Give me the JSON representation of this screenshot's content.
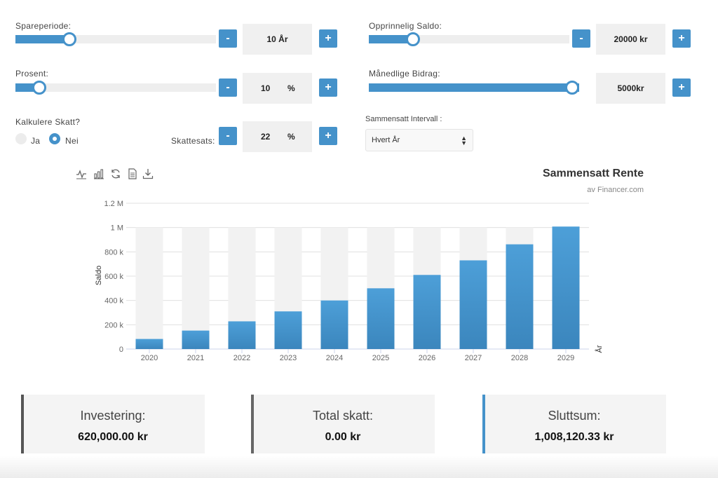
{
  "inputs": {
    "spareperiode": {
      "label": "Spareperiode:",
      "value": "10 År",
      "level": 0.27
    },
    "opprinnelig_saldo": {
      "label": "Opprinnelig Saldo:",
      "value": "20000 kr",
      "level": 0.22
    },
    "prosent": {
      "label": "Prosent:",
      "value_num": "10",
      "unit": "%",
      "level": 0.12
    },
    "manedlige_bidrag": {
      "label": "Månedlige Bidrag:",
      "value": "5000kr",
      "level": 1.0
    },
    "skatt": {
      "label": "Kalkulere Skatt?",
      "options": [
        "Ja",
        "Nei"
      ],
      "selected": "Nei"
    },
    "skattesats": {
      "label": "Skattesats:",
      "value_num": "22",
      "unit": "%"
    },
    "intervall": {
      "label": "Sammensatt Intervall :",
      "selected": "Hvert År"
    },
    "minus_label": "-",
    "plus_label": "+"
  },
  "toolbar_icons": [
    "line-chart-icon",
    "bar-chart-icon",
    "refresh-icon",
    "document-icon",
    "download-icon"
  ],
  "chart_data": {
    "type": "bar",
    "title": "Sammensatt Rente",
    "subtitle": "av Financer.com",
    "xlabel": "År",
    "ylabel": "Saldo",
    "categories": [
      "2020",
      "2021",
      "2022",
      "2023",
      "2024",
      "2025",
      "2026",
      "2027",
      "2028",
      "2029"
    ],
    "series": [
      {
        "values": [
          83000,
          152000,
          228000,
          310000,
          400000,
          500000,
          610000,
          730000,
          862000,
          1008120
        ]
      }
    ],
    "background_max": 1000000,
    "ylim": [
      0,
      1200000
    ],
    "yticks": [
      0,
      200000,
      400000,
      600000,
      800000,
      1000000,
      1200000
    ],
    "yticklabels": [
      "0",
      "200 k",
      "400 k",
      "600 k",
      "800 k",
      "1 M",
      "1.2 M"
    ],
    "grid": true,
    "bar_color": "#4a9bd4",
    "background_bar_color": "#f2f2f2"
  },
  "summary": [
    {
      "title": "Investering:",
      "value": "620,000.00 kr",
      "accent": "#555555"
    },
    {
      "title": "Total skatt:",
      "value": "0.00 kr",
      "accent": "#666666"
    },
    {
      "title": "Sluttsum:",
      "value": "1,008,120.33 kr",
      "accent": "#4592ca"
    }
  ]
}
